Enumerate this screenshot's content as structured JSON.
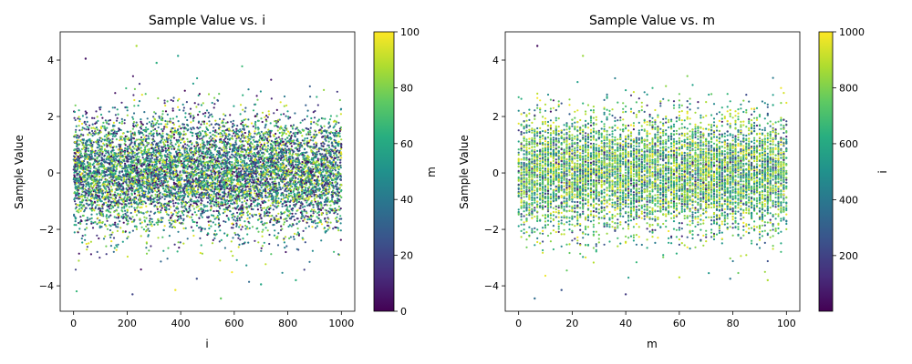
{
  "chart_data": [
    {
      "type": "scatter",
      "title": "Sample Value vs. i",
      "xlabel": "i",
      "ylabel": "Sample Value",
      "xlim": [
        -50,
        1050
      ],
      "ylim": [
        -4.9,
        5.0
      ],
      "xticks": [
        0,
        200,
        400,
        600,
        800,
        1000
      ],
      "yticks": [
        -4,
        -2,
        0,
        2,
        4
      ],
      "x_range": [
        0,
        1000
      ],
      "distribution": "standard normal (mean 0, sd 1)",
      "color_by": "m",
      "colorbar": {
        "label": "m",
        "range": [
          0,
          100
        ],
        "ticks": [
          0,
          20,
          40,
          60,
          80,
          100
        ],
        "colormap": "viridis"
      },
      "outliers": [
        {
          "x": 235,
          "y": 4.5
        },
        {
          "x": 390,
          "y": 4.15
        },
        {
          "x": 45,
          "y": 4.05
        },
        {
          "x": 310,
          "y": 3.9
        },
        {
          "x": 220,
          "y": -4.3
        },
        {
          "x": 550,
          "y": -4.45
        },
        {
          "x": 380,
          "y": -4.15
        },
        {
          "x": 460,
          "y": -3.75
        },
        {
          "x": 700,
          "y": -3.95
        },
        {
          "x": 830,
          "y": -3.8
        }
      ]
    },
    {
      "type": "scatter",
      "title": "Sample Value vs. m",
      "xlabel": "m",
      "ylabel": "Sample Value",
      "xlim": [
        -5,
        105
      ],
      "ylim": [
        -4.9,
        5.0
      ],
      "xticks": [
        0,
        20,
        40,
        60,
        80,
        100
      ],
      "yticks": [
        -4,
        -2,
        0,
        2,
        4
      ],
      "x_range": [
        0,
        100
      ],
      "distribution": "standard normal (mean 0, sd 1)",
      "color_by": "i",
      "colorbar": {
        "label": "i",
        "range": [
          1,
          1000
        ],
        "ticks": [
          200,
          400,
          600,
          800,
          1000
        ],
        "colormap": "viridis"
      },
      "outliers": [
        {
          "x": 7,
          "y": 4.5
        },
        {
          "x": 24,
          "y": 4.15
        },
        {
          "x": 40,
          "y": -4.3
        },
        {
          "x": 6,
          "y": -4.45
        },
        {
          "x": 16,
          "y": -4.15
        },
        {
          "x": 79,
          "y": -3.75
        },
        {
          "x": 93,
          "y": -3.8
        },
        {
          "x": 60,
          "y": -3.7
        }
      ]
    }
  ]
}
